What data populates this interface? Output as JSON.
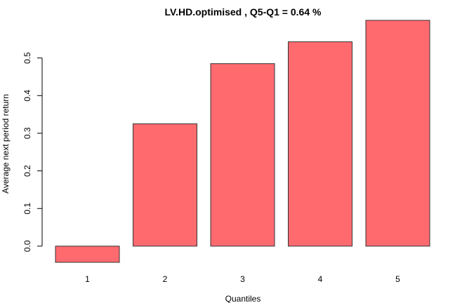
{
  "chart_data": {
    "type": "bar",
    "title": "LV.HD.optimised ,  Q5-Q1  =  0.64 %",
    "xlabel": "Quantiles",
    "ylabel": "Average next period return",
    "categories": [
      "1",
      "2",
      "3",
      "4",
      "5"
    ],
    "values": [
      -0.043,
      0.325,
      0.485,
      0.543,
      0.6
    ],
    "yticks": [
      "0.0",
      "0.1",
      "0.2",
      "0.3",
      "0.4",
      "0.5"
    ],
    "ylim": [
      -0.043,
      0.6
    ],
    "bar_color": "#ff6a6f",
    "grid": false
  }
}
